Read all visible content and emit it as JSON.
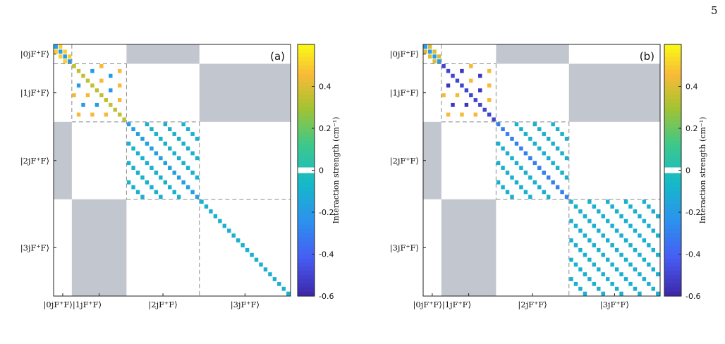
{
  "page_number": "5",
  "caption": "",
  "colors": {
    "zero_band": "#ffffff",
    "block_gray": "#c2c6ce",
    "dashed": "#8a8a8a"
  },
  "chart_data": [
    {
      "type": "heatmap",
      "panel_label": "(a)",
      "state_labels": [
        "|0jF⁺F⟩",
        "|1jF⁺F⟩",
        "|2jF⁺F⟩",
        "|3jF⁺F⟩"
      ],
      "block_sizes": [
        4,
        12,
        16,
        20
      ],
      "colorbar": {
        "label": "Interaction strength (cm⁻¹)",
        "range": [
          -0.6,
          0.6
        ],
        "ticks": [
          "0.4",
          "0.2",
          "0",
          "-0.2",
          "-0.4",
          "-0.6"
        ]
      },
      "gray_blocks": [
        [
          0,
          2
        ],
        [
          2,
          0
        ],
        [
          1,
          3
        ],
        [
          3,
          1
        ]
      ],
      "diagonal": {
        "block_values": [
          -0.2,
          0.35,
          -0.18,
          -0.1
        ]
      },
      "offdiagonal": [
        {
          "block": 0,
          "offsets": [
            1
          ],
          "value": 0.5
        },
        {
          "block": 1,
          "offsets": [
            3,
            6,
            9
          ],
          "values_cycle": [
            -0.2,
            0.35,
            0.45,
            0.1
          ]
        },
        {
          "block": 2,
          "offsets": [
            4,
            8,
            12
          ],
          "value": -0.1
        },
        {
          "block": 3,
          "offsets": [],
          "value": 0
        }
      ]
    },
    {
      "type": "heatmap",
      "panel_label": "(b)",
      "state_labels": [
        "|0jF⁺F⟩",
        "|1jF⁺F⟩",
        "|2jF⁺F⟩",
        "|3jF⁺F⟩"
      ],
      "block_sizes": [
        4,
        12,
        16,
        20
      ],
      "colorbar": {
        "label": "Interaction strength (cm⁻¹)",
        "range": [
          -0.6,
          0.6
        ],
        "ticks": [
          "0.4",
          "0.2",
          "0",
          "-0.2",
          "-0.4",
          "-0.6"
        ]
      },
      "gray_blocks": [
        [
          0,
          2
        ],
        [
          2,
          0
        ],
        [
          1,
          3
        ],
        [
          3,
          1
        ]
      ],
      "diagonal": {
        "block_values": [
          -0.2,
          -0.5,
          -0.3,
          -0.1
        ]
      },
      "offdiagonal": [
        {
          "block": 0,
          "offsets": [
            1
          ],
          "value": 0.4
        },
        {
          "block": 1,
          "offsets": [
            3,
            6,
            9
          ],
          "values_cycle": [
            -0.55,
            -0.1,
            0.45,
            -0.3
          ]
        },
        {
          "block": 2,
          "offsets": [
            4,
            8,
            12
          ],
          "value": -0.1
        },
        {
          "block": 3,
          "offsets": [
            4,
            8,
            12,
            16
          ],
          "value": -0.1
        }
      ]
    }
  ]
}
